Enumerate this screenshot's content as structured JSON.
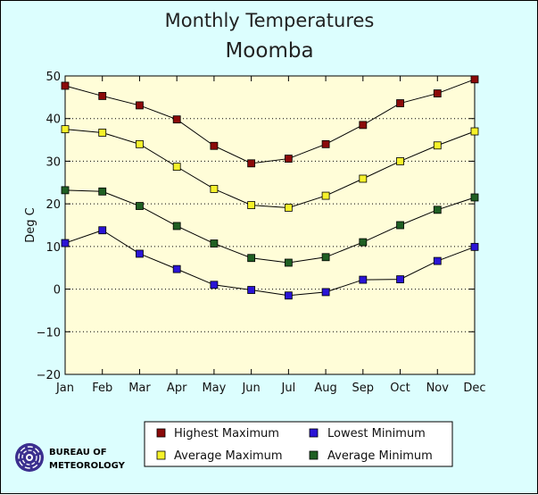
{
  "chart_data": {
    "type": "line",
    "title": "Monthly Temperatures",
    "subtitle": "Moomba",
    "ylabel": "Deg C",
    "xlabel": "",
    "categories": [
      "Jan",
      "Feb",
      "Mar",
      "Apr",
      "May",
      "Jun",
      "Jul",
      "Aug",
      "Sep",
      "Oct",
      "Nov",
      "Dec"
    ],
    "ylim": [
      -20,
      50
    ],
    "yticks": [
      -20,
      -10,
      0,
      10,
      20,
      30,
      40,
      50
    ],
    "grid": true,
    "legend_position": "bottom",
    "series": [
      {
        "name": "Highest Maximum",
        "color": "#8b0a0a",
        "values": [
          47.7,
          45.3,
          43.1,
          39.8,
          33.6,
          29.5,
          30.6,
          34.0,
          38.5,
          43.6,
          45.9,
          49.2
        ]
      },
      {
        "name": "Average Maximum",
        "color": "#f6f22a",
        "values": [
          37.5,
          36.7,
          34.0,
          28.7,
          23.5,
          19.7,
          19.1,
          21.9,
          25.9,
          30.0,
          33.7,
          37.0
        ]
      },
      {
        "name": "Average Minimum",
        "color": "#1f5f23",
        "values": [
          23.2,
          22.9,
          19.5,
          14.8,
          10.7,
          7.3,
          6.2,
          7.5,
          11.0,
          15.0,
          18.6,
          21.5
        ]
      },
      {
        "name": "Lowest Minimum",
        "color": "#2a14d6",
        "values": [
          10.8,
          13.8,
          8.3,
          4.7,
          1.0,
          -0.2,
          -1.5,
          -0.7,
          2.2,
          2.3,
          6.6,
          9.9
        ]
      }
    ]
  },
  "legend": {
    "highest_maximum": "Highest Maximum",
    "lowest_minimum": "Lowest Minimum",
    "average_maximum": "Average Maximum",
    "average_minimum": "Average Minimum"
  },
  "logo": {
    "line1": "Bureau of",
    "line2": "Meteorology"
  },
  "colors": {
    "background": "#dcfefe",
    "plot_background": "#fffdd8"
  }
}
